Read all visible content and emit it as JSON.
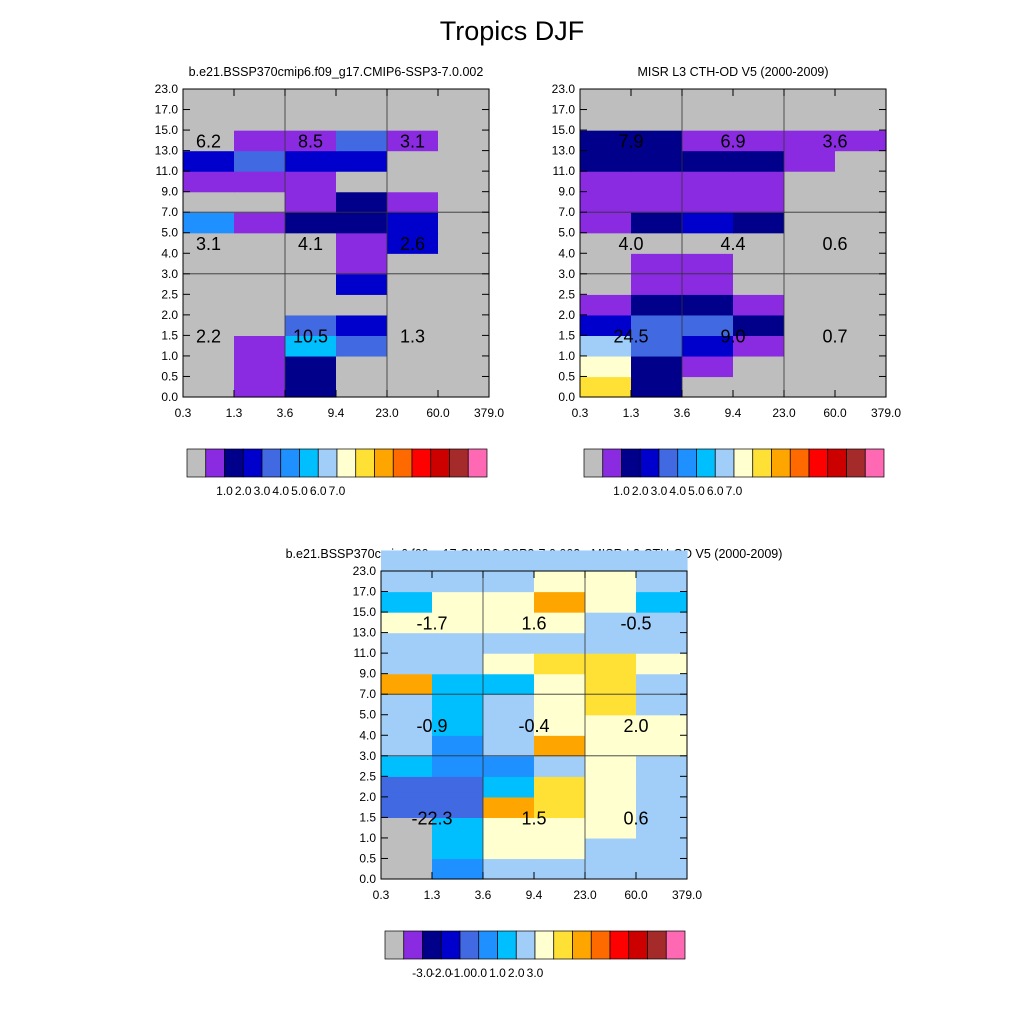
{
  "figure": {
    "title": "Tropics DJF"
  },
  "colors": {
    "absolute_palette": [
      "#bebebe",
      "#8a2be2",
      "#00008b",
      "#0000cd",
      "#4169e1",
      "#1e90ff",
      "#00bfff",
      "#a0cef8",
      "#ffffd0",
      "#ffe135",
      "#ffa500",
      "#ff6a00",
      "#ff0000",
      "#cd0000",
      "#a52a2a",
      "#ff69b4"
    ],
    "difference_palette": [
      "#bebebe",
      "#8a2be2",
      "#00008b",
      "#0000cd",
      "#4169e1",
      "#1e90ff",
      "#00bfff",
      "#a0cef8",
      "#ffffd0",
      "#ffe135",
      "#ffa500",
      "#ff6a00",
      "#ff0000",
      "#cd0000",
      "#a52a2a",
      "#ff69b4"
    ]
  },
  "chart_data": [
    {
      "id": "model",
      "type": "heatmap",
      "title": "b.e21.BSSP370cmip6.f09_g17.CMIP6-SSP3-7.0.002",
      "xlabel": "",
      "ylabel": "",
      "x_ticks": [
        "0.3",
        "1.3",
        "3.6",
        "9.4",
        "23.0",
        "60.0",
        "379.0"
      ],
      "y_ticks": [
        "0.0",
        "0.5",
        "1.0",
        "1.5",
        "2.0",
        "2.5",
        "3.0",
        "4.0",
        "5.0",
        "7.0",
        "9.0",
        "11.0",
        "13.0",
        "15.0",
        "17.0",
        "23.0"
      ],
      "grid_rows": [
        [
          0,
          1,
          2,
          0,
          0,
          0
        ],
        [
          0,
          1,
          2,
          0,
          0,
          0
        ],
        [
          0,
          1,
          6,
          4,
          0,
          0
        ],
        [
          0,
          0,
          4,
          3,
          0,
          0
        ],
        [
          0,
          0,
          0,
          0,
          0,
          0
        ],
        [
          0,
          0,
          0,
          3,
          0,
          0
        ],
        [
          0,
          0,
          0,
          1,
          0,
          0
        ],
        [
          0,
          0,
          0,
          1,
          3,
          0
        ],
        [
          5,
          1,
          2,
          2,
          3,
          0
        ],
        [
          0,
          0,
          1,
          2,
          1,
          0
        ],
        [
          1,
          1,
          1,
          0,
          0,
          0
        ],
        [
          3,
          4,
          3,
          3,
          0,
          0
        ],
        [
          0,
          1,
          1,
          4,
          1,
          0
        ],
        [
          0,
          0,
          0,
          0,
          0,
          0
        ],
        [
          0,
          0,
          0,
          0,
          0,
          0
        ]
      ],
      "region_labels": [
        {
          "text": "6.2",
          "col": 0.5,
          "row": 12.5
        },
        {
          "text": "8.5",
          "col": 2.5,
          "row": 12.5
        },
        {
          "text": "3.1",
          "col": 4.5,
          "row": 12.5
        },
        {
          "text": "3.1",
          "col": 0.5,
          "row": 7.5
        },
        {
          "text": "4.1",
          "col": 2.5,
          "row": 7.5
        },
        {
          "text": "2.6",
          "col": 4.5,
          "row": 7.5
        },
        {
          "text": "2.2",
          "col": 0.5,
          "row": 3.0
        },
        {
          "text": "10.5",
          "col": 2.5,
          "row": 3.0
        },
        {
          "text": "1.3",
          "col": 4.5,
          "row": 3.0
        }
      ],
      "colorbar": {
        "palette": "absolute_palette",
        "labels": [
          "1.0",
          "2.0",
          "3.0",
          "4.0",
          "5.0",
          "6.0",
          "7.0"
        ]
      }
    },
    {
      "id": "obs",
      "type": "heatmap",
      "title": "MISR L3 CTH-OD V5 (2000-2009)",
      "xlabel": "",
      "ylabel": "",
      "x_ticks": [
        "0.3",
        "1.3",
        "3.6",
        "9.4",
        "23.0",
        "60.0",
        "379.0"
      ],
      "y_ticks": [
        "0.0",
        "0.5",
        "1.0",
        "1.5",
        "2.0",
        "2.5",
        "3.0",
        "4.0",
        "5.0",
        "7.0",
        "9.0",
        "11.0",
        "13.0",
        "15.0",
        "17.0",
        "23.0"
      ],
      "grid_rows": [
        [
          9,
          2,
          0,
          0,
          0,
          0
        ],
        [
          8,
          2,
          1,
          0,
          0,
          0
        ],
        [
          7,
          4,
          3,
          1,
          0,
          0
        ],
        [
          3,
          4,
          4,
          2,
          0,
          0
        ],
        [
          1,
          2,
          2,
          1,
          0,
          0
        ],
        [
          0,
          1,
          1,
          0,
          0,
          0
        ],
        [
          0,
          1,
          1,
          0,
          0,
          0
        ],
        [
          0,
          0,
          0,
          0,
          0,
          0
        ],
        [
          1,
          2,
          3,
          2,
          0,
          0
        ],
        [
          1,
          1,
          1,
          1,
          0,
          0
        ],
        [
          1,
          1,
          1,
          1,
          0,
          0
        ],
        [
          2,
          2,
          2,
          2,
          1,
          0
        ],
        [
          2,
          2,
          1,
          1,
          1,
          1
        ],
        [
          0,
          0,
          0,
          0,
          0,
          0
        ],
        [
          0,
          0,
          0,
          0,
          0,
          0
        ]
      ],
      "region_labels": [
        {
          "text": "7.9",
          "col": 1.0,
          "row": 12.5
        },
        {
          "text": "6.9",
          "col": 3.0,
          "row": 12.5
        },
        {
          "text": "3.6",
          "col": 5.0,
          "row": 12.5
        },
        {
          "text": "4.0",
          "col": 1.0,
          "row": 7.5
        },
        {
          "text": "4.4",
          "col": 3.0,
          "row": 7.5
        },
        {
          "text": "0.6",
          "col": 5.0,
          "row": 7.5
        },
        {
          "text": "24.5",
          "col": 1.0,
          "row": 3.0
        },
        {
          "text": "9.0",
          "col": 3.0,
          "row": 3.0
        },
        {
          "text": "0.7",
          "col": 5.0,
          "row": 3.0
        }
      ],
      "colorbar": {
        "palette": "absolute_palette",
        "labels": [
          "1.0",
          "2.0",
          "3.0",
          "4.0",
          "5.0",
          "6.0",
          "7.0"
        ]
      }
    },
    {
      "id": "diff",
      "type": "heatmap",
      "title": "b.e21.BSSP370cmip6.f09_g17.CMIP6-SSP3-7.0.002 - MISR L3 CTH-OD V5 (2000-2009)",
      "xlabel": "",
      "ylabel": "",
      "x_ticks": [
        "0.3",
        "1.3",
        "3.6",
        "9.4",
        "23.0",
        "60.0",
        "379.0"
      ],
      "y_ticks": [
        "0.0",
        "0.5",
        "1.0",
        "1.5",
        "2.0",
        "2.5",
        "3.0",
        "4.0",
        "5.0",
        "7.0",
        "9.0",
        "11.0",
        "13.0",
        "15.0",
        "17.0",
        "23.0"
      ],
      "grid_rows": [
        [
          0,
          5,
          7,
          7,
          7,
          7
        ],
        [
          0,
          6,
          8,
          8,
          7,
          7
        ],
        [
          0,
          6,
          8,
          8,
          8,
          7
        ],
        [
          4,
          4,
          10,
          9,
          8,
          7
        ],
        [
          4,
          4,
          6,
          9,
          8,
          7
        ],
        [
          6,
          5,
          5,
          7,
          8,
          7
        ],
        [
          7,
          5,
          7,
          10,
          8,
          8
        ],
        [
          7,
          6,
          7,
          8,
          8,
          8
        ],
        [
          7,
          6,
          7,
          8,
          9,
          7
        ],
        [
          10,
          6,
          6,
          8,
          9,
          7
        ],
        [
          7,
          7,
          8,
          9,
          9,
          8
        ],
        [
          7,
          7,
          7,
          7,
          7,
          7
        ],
        [
          8,
          8,
          8,
          8,
          7,
          7
        ],
        [
          6,
          8,
          8,
          10,
          8,
          6
        ],
        [
          7,
          7,
          7,
          8,
          8,
          7
        ],
        [
          7,
          7,
          7,
          7,
          7,
          7
        ]
      ],
      "region_labels": [
        {
          "text": "-1.7",
          "col": 1.0,
          "row": 12.5
        },
        {
          "text": "1.6",
          "col": 3.0,
          "row": 12.5
        },
        {
          "text": "-0.5",
          "col": 5.0,
          "row": 12.5
        },
        {
          "text": "-0.9",
          "col": 1.0,
          "row": 7.5
        },
        {
          "text": "-0.4",
          "col": 3.0,
          "row": 7.5
        },
        {
          "text": "2.0",
          "col": 5.0,
          "row": 7.5
        },
        {
          "text": "-22.3",
          "col": 1.0,
          "row": 3.0
        },
        {
          "text": "1.5",
          "col": 3.0,
          "row": 3.0
        },
        {
          "text": "0.6",
          "col": 5.0,
          "row": 3.0
        }
      ],
      "colorbar": {
        "palette": "difference_palette",
        "labels": [
          "-3.0",
          "-2.0",
          "-1.0",
          "0.0",
          "1.0",
          "2.0",
          "3.0"
        ]
      }
    }
  ]
}
